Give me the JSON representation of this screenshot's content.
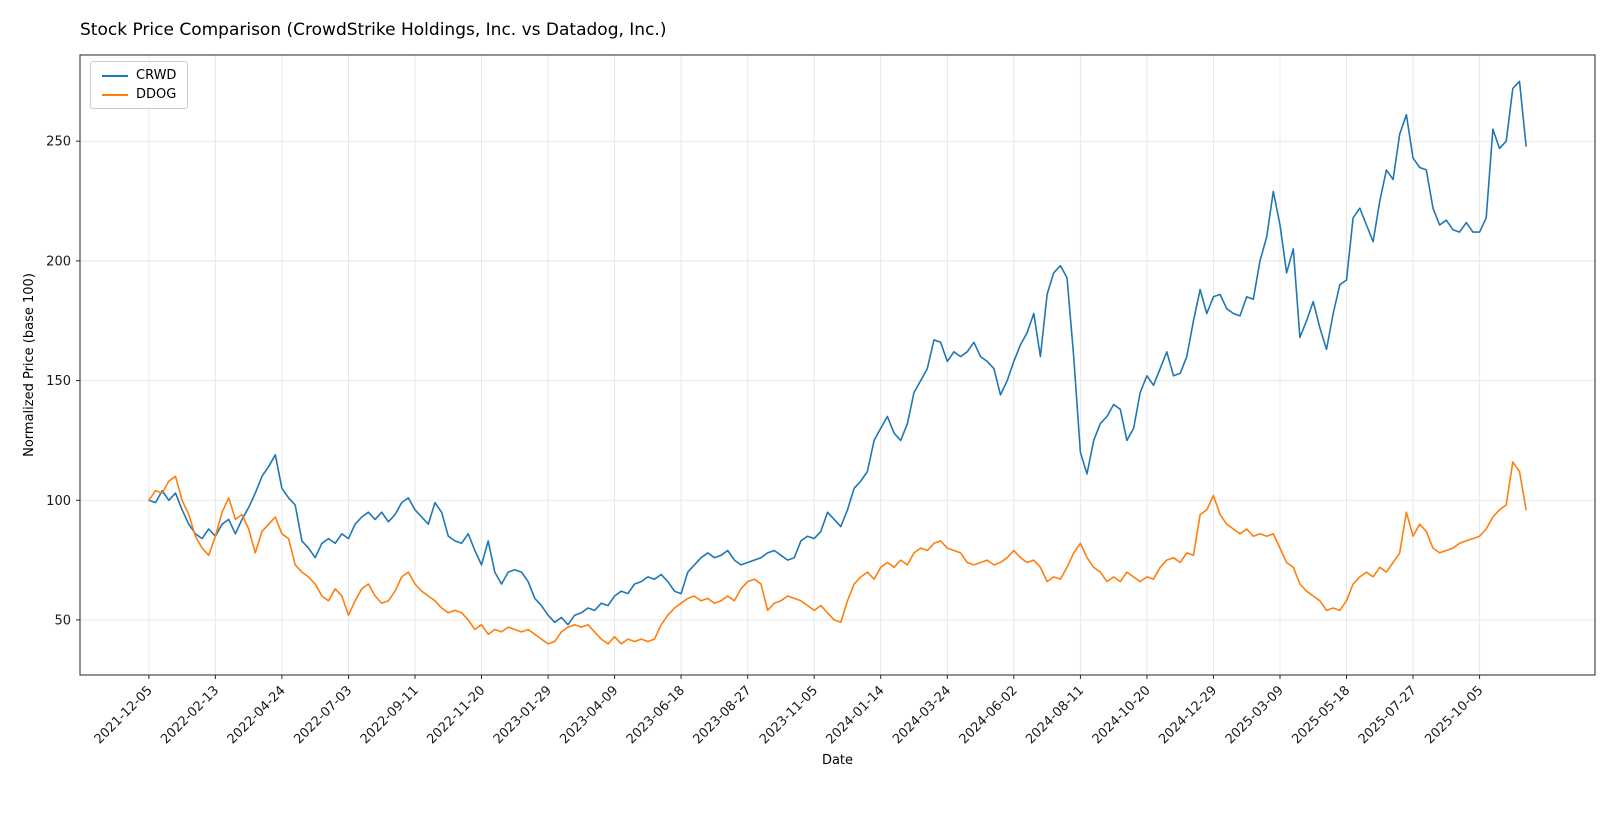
{
  "chart_data": {
    "type": "line",
    "title": "Stock Price Comparison (CrowdStrike Holdings, Inc. vs Datadog, Inc.)",
    "xlabel": "Date",
    "ylabel": "Normalized Price (base 100)",
    "grid": true,
    "legend": {
      "position": "upper left",
      "entries": [
        {
          "label": "CRWD",
          "color": "#1f77b4"
        },
        {
          "label": "DDOG",
          "color": "#ff7f0e"
        }
      ]
    },
    "y_ticks": [
      50,
      100,
      150,
      200,
      250
    ],
    "ylim": [
      27,
      286
    ],
    "x_tick_indices": [
      0,
      10,
      20,
      30,
      40,
      50,
      60,
      70,
      80,
      90,
      100,
      110,
      120,
      130,
      140,
      150,
      160,
      170,
      180,
      190,
      200
    ],
    "x_tick_labels": [
      "2021-12-05",
      "2022-02-13",
      "2022-04-24",
      "2022-07-03",
      "2022-09-11",
      "2022-11-20",
      "2023-01-29",
      "2023-04-09",
      "2023-06-18",
      "2023-08-27",
      "2023-11-05",
      "2024-01-14",
      "2024-03-24",
      "2024-06-02",
      "2024-08-11",
      "2024-10-20",
      "2024-12-29",
      "2025-03-09",
      "2025-05-18",
      "2025-07-27",
      "2025-10-05"
    ],
    "x_frequency": "weekly",
    "series": [
      {
        "name": "CRWD",
        "color": "#1f77b4",
        "values": [
          100,
          99,
          104,
          100,
          103,
          96,
          90,
          86,
          84,
          88,
          85,
          90,
          92,
          86,
          92,
          97,
          103,
          110,
          114,
          119,
          105,
          101,
          98,
          83,
          80,
          76,
          82,
          84,
          82,
          86,
          84,
          90,
          93,
          95,
          92,
          95,
          91,
          94,
          99,
          101,
          96,
          93,
          90,
          99,
          95,
          85,
          83,
          82,
          86,
          79,
          73,
          83,
          70,
          65,
          70,
          71,
          70,
          66,
          59,
          56,
          52,
          49,
          51,
          48,
          52,
          53,
          55,
          54,
          57,
          56,
          60,
          62,
          61,
          65,
          66,
          68,
          67,
          69,
          66,
          62,
          61,
          70,
          73,
          76,
          78,
          76,
          77,
          79,
          75,
          73,
          74,
          75,
          76,
          78,
          79,
          77,
          75,
          76,
          83,
          85,
          84,
          87,
          95,
          92,
          89,
          96,
          105,
          108,
          112,
          125,
          130,
          135,
          128,
          125,
          132,
          145,
          150,
          155,
          167,
          166,
          158,
          162,
          160,
          162,
          166,
          160,
          158,
          155,
          144,
          150,
          158,
          165,
          170,
          178,
          160,
          186,
          195,
          198,
          193,
          160,
          120,
          111,
          125,
          132,
          135,
          140,
          138,
          125,
          130,
          145,
          152,
          148,
          155,
          162,
          152,
          153,
          160,
          175,
          188,
          178,
          185,
          186,
          180,
          178,
          177,
          185,
          184,
          200,
          210,
          229,
          215,
          195,
          205,
          168,
          175,
          183,
          172,
          163,
          178,
          190,
          192,
          218,
          222,
          215,
          208,
          225,
          238,
          234,
          253,
          261,
          243,
          239,
          238,
          222,
          215,
          217,
          213,
          212,
          216,
          212,
          212,
          218,
          255,
          247,
          250,
          272,
          275,
          248
        ]
      },
      {
        "name": "DDOG",
        "color": "#ff7f0e",
        "values": [
          100,
          104,
          103,
          108,
          110,
          100,
          94,
          85,
          80,
          77,
          85,
          95,
          101,
          92,
          94,
          88,
          78,
          87,
          90,
          93,
          86,
          84,
          73,
          70,
          68,
          65,
          60,
          58,
          63,
          60,
          52,
          58,
          63,
          65,
          60,
          57,
          58,
          62,
          68,
          70,
          65,
          62,
          60,
          58,
          55,
          53,
          54,
          53,
          50,
          46,
          48,
          44,
          46,
          45,
          47,
          46,
          45,
          46,
          44,
          42,
          40,
          41,
          45,
          47,
          48,
          47,
          48,
          45,
          42,
          40,
          43,
          40,
          42,
          41,
          42,
          41,
          42,
          48,
          52,
          55,
          57,
          59,
          60,
          58,
          59,
          57,
          58,
          60,
          58,
          63,
          66,
          67,
          65,
          54,
          57,
          58,
          60,
          59,
          58,
          56,
          54,
          56,
          53,
          50,
          49,
          58,
          65,
          68,
          70,
          67,
          72,
          74,
          72,
          75,
          73,
          78,
          80,
          79,
          82,
          83,
          80,
          79,
          78,
          74,
          73,
          74,
          75,
          73,
          74,
          76,
          79,
          76,
          74,
          75,
          72,
          66,
          68,
          67,
          72,
          78,
          82,
          76,
          72,
          70,
          66,
          68,
          66,
          70,
          68,
          66,
          68,
          67,
          72,
          75,
          76,
          74,
          78,
          77,
          94,
          96,
          102,
          94,
          90,
          88,
          86,
          88,
          85,
          86,
          85,
          86,
          80,
          74,
          72,
          65,
          62,
          60,
          58,
          54,
          55,
          54,
          58,
          65,
          68,
          70,
          68,
          72,
          70,
          74,
          78,
          95,
          85,
          90,
          87,
          80,
          78,
          79,
          80,
          82,
          83,
          84,
          85,
          88,
          93,
          96,
          98,
          116,
          112,
          96
        ]
      }
    ]
  }
}
